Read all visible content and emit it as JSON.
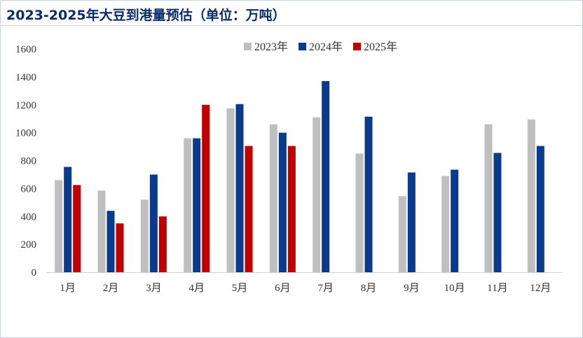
{
  "title": "2023-2025年大豆到港量预估（单位：万吨）",
  "chart_data": {
    "type": "bar",
    "categories": [
      "1月",
      "2月",
      "3月",
      "4月",
      "5月",
      "6月",
      "7月",
      "8月",
      "9月",
      "10月",
      "11月",
      "12月"
    ],
    "series": [
      {
        "name": "2023年",
        "color": "#bfbfbf",
        "values": [
          660,
          585,
          520,
          960,
          1175,
          1060,
          1110,
          850,
          545,
          690,
          1060,
          1095
        ]
      },
      {
        "name": "2024年",
        "color": "#0a3a8c",
        "values": [
          755,
          440,
          700,
          960,
          1205,
          1000,
          1370,
          1115,
          715,
          735,
          855,
          905
        ]
      },
      {
        "name": "2025年",
        "color": "#c00000",
        "values": [
          625,
          350,
          400,
          1200,
          905,
          905,
          null,
          null,
          null,
          null,
          null,
          null
        ]
      }
    ],
    "ylim": [
      0,
      1600
    ],
    "yticks": [
      0,
      200,
      400,
      600,
      800,
      1000,
      1200,
      1400,
      1600
    ],
    "grid": false,
    "legend_position": "top-center"
  }
}
